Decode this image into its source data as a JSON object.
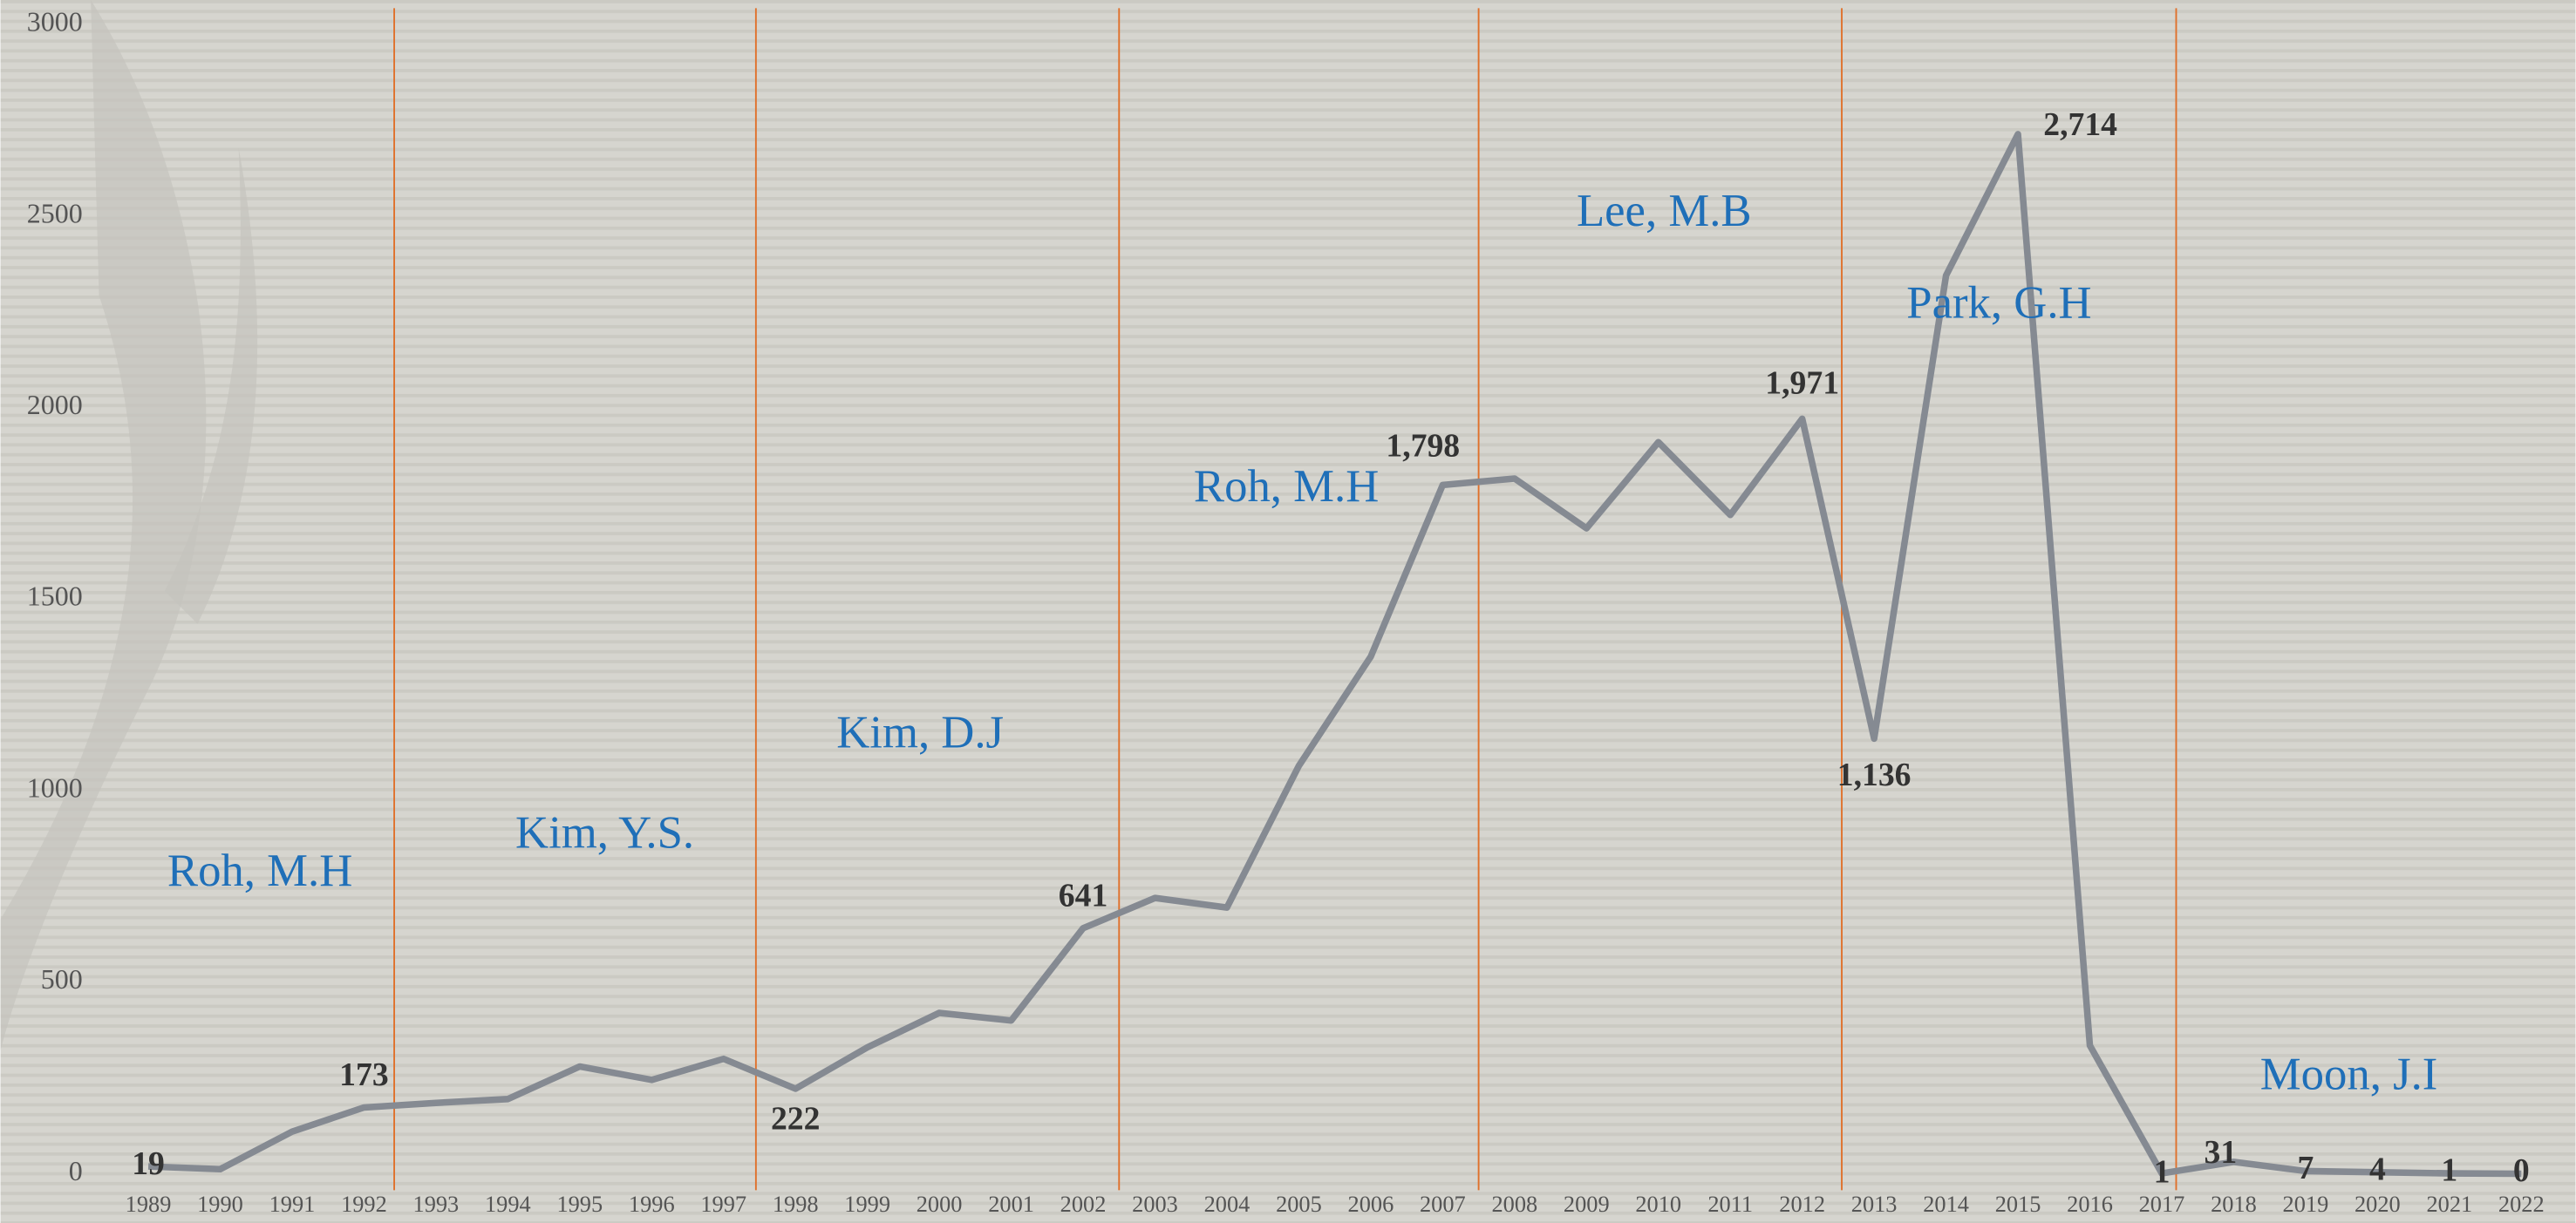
{
  "chart_data": {
    "type": "line",
    "categories": [
      "1989",
      "1990",
      "1991",
      "1992",
      "1993",
      "1994",
      "1995",
      "1996",
      "1997",
      "1998",
      "1999",
      "2000",
      "2001",
      "2002",
      "2003",
      "2004",
      "2005",
      "2006",
      "2007",
      "2008",
      "2009",
      "2010",
      "2011",
      "2012",
      "2013",
      "2014",
      "2015",
      "2016",
      "2017",
      "2018",
      "2019",
      "2020",
      "2021",
      "2022"
    ],
    "series": [
      {
        "color": "#858a92",
        "values": [
          19,
          12,
          110,
          173,
          185,
          195,
          280,
          245,
          300,
          222,
          330,
          420,
          400,
          641,
          720,
          695,
          1065,
          1350,
          1798,
          1815,
          1685,
          1910,
          1720,
          1971,
          1136,
          2345,
          2714,
          335,
          1,
          31,
          7,
          4,
          1,
          0
        ],
        "value_labels": [
          "19",
          null,
          null,
          "173",
          null,
          null,
          null,
          null,
          null,
          "222",
          null,
          null,
          null,
          "641",
          null,
          null,
          null,
          null,
          "1,798",
          null,
          null,
          null,
          null,
          "1,971",
          "1,136",
          null,
          "2,714",
          null,
          "1",
          "31",
          "7",
          "4",
          "1",
          "0"
        ]
      }
    ],
    "ylim": [
      0,
      3000
    ],
    "yticks": [
      0,
      500,
      1000,
      1500,
      2000,
      2500,
      3000
    ],
    "annotations": [
      "Roh, M.H",
      "Kim, Y.S.",
      "Kim, D.J",
      "Roh, M.H",
      "Lee, M.B",
      "Park, G.H",
      "Moon, J.I"
    ]
  }
}
